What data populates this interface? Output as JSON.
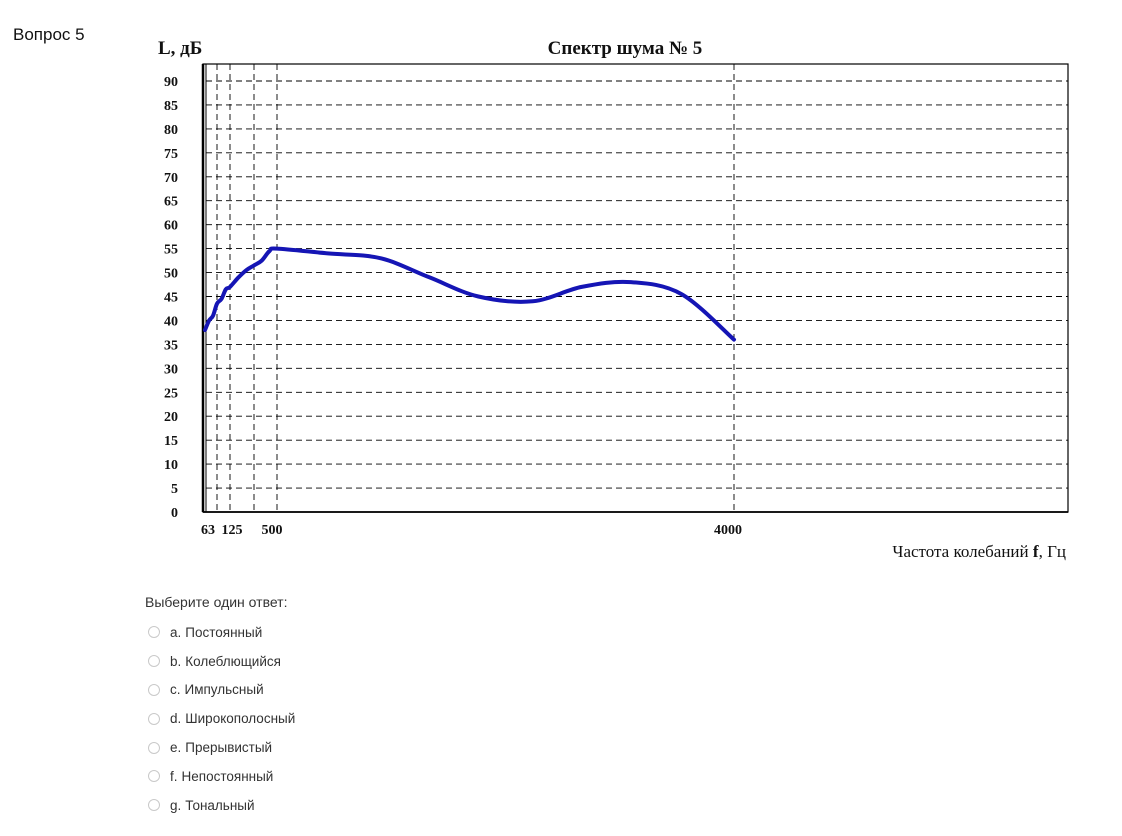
{
  "question": {
    "title": "Вопрос 5"
  },
  "chart_data": {
    "type": "line",
    "title": "Спектр шума № 5",
    "ylabel": "L, дБ",
    "xlabel_prefix": "Частота колебаний ",
    "xlabel_var": "f",
    "xlabel_suffix": ", Гц",
    "ylim": [
      0,
      90
    ],
    "yticks": [
      0,
      5,
      10,
      15,
      20,
      25,
      30,
      35,
      40,
      45,
      50,
      55,
      60,
      65,
      70,
      75,
      80,
      85,
      90
    ],
    "xtick_labels": [
      "63",
      "125",
      "500",
      "4000"
    ],
    "grid": true,
    "series": [
      {
        "color": "#1515b5",
        "x": [
          31.5,
          40,
          50,
          63,
          80,
          100,
          125,
          160,
          200,
          250,
          315,
          400,
          500,
          630,
          800,
          1000,
          1250,
          1600,
          2000,
          2500,
          3150,
          4000
        ],
        "values": [
          38,
          40,
          41,
          43.5,
          44.5,
          46.5,
          47,
          49,
          50.5,
          51.5,
          52.5,
          54.5,
          55,
          54,
          53,
          49,
          45,
          44,
          47,
          48,
          45.5,
          36
        ]
      }
    ]
  },
  "answer": {
    "prompt": "Выберите один ответ:",
    "options": [
      {
        "letter": "a.",
        "text": "Постоянный"
      },
      {
        "letter": "b.",
        "text": "Колеблющийся"
      },
      {
        "letter": "c.",
        "text": "Импульсный"
      },
      {
        "letter": "d.",
        "text": "Широкополосный"
      },
      {
        "letter": "e.",
        "text": "Прерывистый"
      },
      {
        "letter": "f.",
        "text": "Непостоянный"
      },
      {
        "letter": "g.",
        "text": "Тональный"
      }
    ]
  }
}
